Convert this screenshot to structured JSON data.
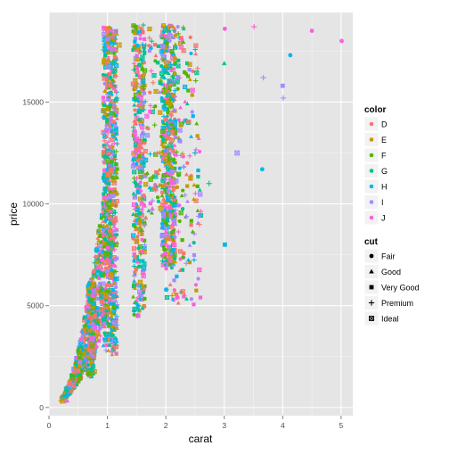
{
  "chart_data": {
    "type": "scatter",
    "xlabel": "carat",
    "ylabel": "price",
    "xlim": [
      0,
      5.2
    ],
    "ylim": [
      -400,
      19400
    ],
    "xticks": [
      0,
      1,
      2,
      3,
      4,
      5
    ],
    "yticks": [
      0,
      5000,
      10000,
      15000
    ],
    "grid": true,
    "legend_placement": "right",
    "color_legend": {
      "title": "color",
      "entries": [
        {
          "label": "D",
          "color": "#F8766D"
        },
        {
          "label": "E",
          "color": "#C49A00"
        },
        {
          "label": "F",
          "color": "#53B400"
        },
        {
          "label": "G",
          "color": "#00C094"
        },
        {
          "label": "H",
          "color": "#00B6EB"
        },
        {
          "label": "I",
          "color": "#A58AFF"
        },
        {
          "label": "J",
          "color": "#FB61D7"
        }
      ]
    },
    "shape_legend": {
      "title": "cut",
      "entries": [
        {
          "label": "Fair",
          "shape": "circle"
        },
        {
          "label": "Good",
          "shape": "triangle"
        },
        {
          "label": "Very Good",
          "shape": "square"
        },
        {
          "label": "Premium",
          "shape": "plus"
        },
        {
          "label": "Ideal",
          "shape": "square-x"
        }
      ]
    },
    "points": [
      {
        "x": 0.23,
        "y": 326,
        "color": "E",
        "cut": "Ideal"
      },
      {
        "x": 0.21,
        "y": 326,
        "color": "E",
        "cut": "Premium"
      },
      {
        "x": 0.29,
        "y": 334,
        "color": "I",
        "cut": "Premium"
      },
      {
        "x": 0.31,
        "y": 335,
        "color": "J",
        "cut": "Good"
      },
      {
        "x": 0.3,
        "y": 900,
        "color": "G",
        "cut": "Ideal"
      },
      {
        "x": 0.35,
        "y": 1200,
        "color": "D",
        "cut": "Very Good"
      },
      {
        "x": 0.4,
        "y": 1500,
        "color": "F",
        "cut": "Ideal"
      },
      {
        "x": 0.5,
        "y": 1800,
        "color": "D",
        "cut": "Very Good"
      },
      {
        "x": 0.7,
        "y": 2800,
        "color": "D",
        "cut": "Very Good"
      },
      {
        "x": 0.71,
        "y": 3800,
        "color": "E",
        "cut": "Premium"
      },
      {
        "x": 0.9,
        "y": 5200,
        "color": "D",
        "cut": "Very Good"
      },
      {
        "x": 1.0,
        "y": 7500,
        "color": "F",
        "cut": "Ideal"
      },
      {
        "x": 1.01,
        "y": 10000,
        "color": "F",
        "cut": "Ideal"
      },
      {
        "x": 1.02,
        "y": 12500,
        "color": "D",
        "cut": "Very Good"
      },
      {
        "x": 1.05,
        "y": 15800,
        "color": "D",
        "cut": "Fair"
      },
      {
        "x": 1.0,
        "y": 18500,
        "color": "D",
        "cut": "Very Good"
      },
      {
        "x": 1.2,
        "y": 17800,
        "color": "E",
        "cut": "Ideal"
      },
      {
        "x": 1.5,
        "y": 18600,
        "color": "F",
        "cut": "Premium"
      },
      {
        "x": 2.0,
        "y": 17000,
        "color": "I",
        "cut": "Premium"
      },
      {
        "x": 2.0,
        "y": 8600,
        "color": "J",
        "cut": "Good"
      },
      {
        "x": 2.2,
        "y": 5400,
        "color": "J",
        "cut": "Fair"
      },
      {
        "x": 2.5,
        "y": 12500,
        "color": "H",
        "cut": "Premium"
      },
      {
        "x": 2.74,
        "y": 11000,
        "color": "G",
        "cut": "Premium"
      },
      {
        "x": 3.0,
        "y": 16900,
        "color": "G",
        "cut": "Good"
      },
      {
        "x": 3.01,
        "y": 18600,
        "color": "J",
        "cut": "Fair"
      },
      {
        "x": 3.01,
        "y": 8000,
        "color": "H",
        "cut": "Very Good"
      },
      {
        "x": 3.22,
        "y": 12500,
        "color": "I",
        "cut": "Ideal"
      },
      {
        "x": 3.51,
        "y": 18700,
        "color": "J",
        "cut": "Premium"
      },
      {
        "x": 3.65,
        "y": 11700,
        "color": "H",
        "cut": "Fair"
      },
      {
        "x": 3.67,
        "y": 16200,
        "color": "I",
        "cut": "Premium"
      },
      {
        "x": 4.0,
        "y": 15800,
        "color": "I",
        "cut": "Very Good"
      },
      {
        "x": 4.01,
        "y": 15200,
        "color": "I",
        "cut": "Premium"
      },
      {
        "x": 4.13,
        "y": 17300,
        "color": "H",
        "cut": "Fair"
      },
      {
        "x": 4.5,
        "y": 18500,
        "color": "J",
        "cut": "Fair"
      },
      {
        "x": 5.01,
        "y": 18000,
        "color": "J",
        "cut": "Fair"
      }
    ]
  }
}
